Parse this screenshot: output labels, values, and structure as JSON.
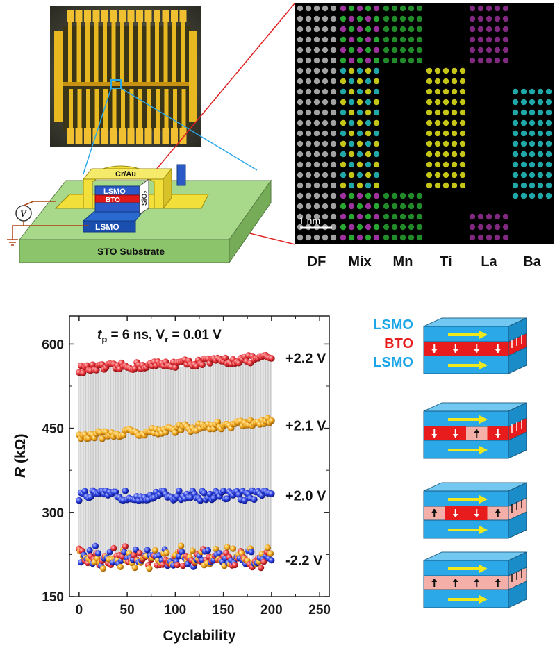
{
  "device": {
    "top_layer": "Cr/Au",
    "layers": [
      "LSMO",
      "BTO",
      "LSMO"
    ],
    "side_label": "SiO₂",
    "substrate": "STO Substrate",
    "meter_symbol": "V"
  },
  "stem": {
    "scale_bar": "1 nm",
    "panels": [
      "DF",
      "Mix",
      "Mn",
      "Ti",
      "La",
      "Ba"
    ],
    "colors": {
      "DF": "#b0b0b0",
      "Mn": "#2fc43a",
      "Ti": "#e8e81c",
      "La": "#b83ab8",
      "Ba": "#26c6c6"
    }
  },
  "schematic": {
    "labels": [
      "LSMO",
      "BTO",
      "LSMO"
    ],
    "label_colors": [
      "#1aa6e8",
      "#e81c1c",
      "#1aa6e8"
    ],
    "states": [
      {
        "domains": [
          "down",
          "down",
          "down",
          "down"
        ]
      },
      {
        "domains": [
          "down",
          "down",
          "up",
          "down"
        ]
      },
      {
        "domains": [
          "up",
          "down",
          "down",
          "up"
        ]
      },
      {
        "domains": [
          "up",
          "up",
          "up",
          "up"
        ]
      }
    ]
  },
  "chart_data": {
    "type": "scatter",
    "title_parts": {
      "t": "t",
      "sub": "p",
      "rest": " = 6 ns, V",
      "sub2": "r",
      "rest2": " = 0.01 V"
    },
    "xlabel": "Cyclability",
    "ylabel_italic": "R",
    "ylabel_unit": " (kΩ)",
    "xlim": [
      -10,
      260
    ],
    "ylim": [
      150,
      650
    ],
    "xticks": [
      0,
      50,
      100,
      150,
      200,
      250
    ],
    "yticks": [
      150,
      300,
      450,
      600
    ],
    "series": [
      {
        "name": "+2.2 V",
        "color": "#e8343a",
        "from": 555,
        "to": 575,
        "spread": 14
      },
      {
        "name": "+2.1 V",
        "color": "#f2a81e",
        "from": 435,
        "to": 462,
        "spread": 14
      },
      {
        "name": "+2.0 V",
        "color": "#2a3fe0",
        "from": 330,
        "to": 330,
        "spread": 18
      },
      {
        "name": "-2.2 V",
        "color": "#e8343a",
        "from": 218,
        "to": 218,
        "spread": 14
      }
    ],
    "low_state_mix_colors": [
      "#e8343a",
      "#f2a81e",
      "#2a3fe0"
    ],
    "n_points": 200
  }
}
